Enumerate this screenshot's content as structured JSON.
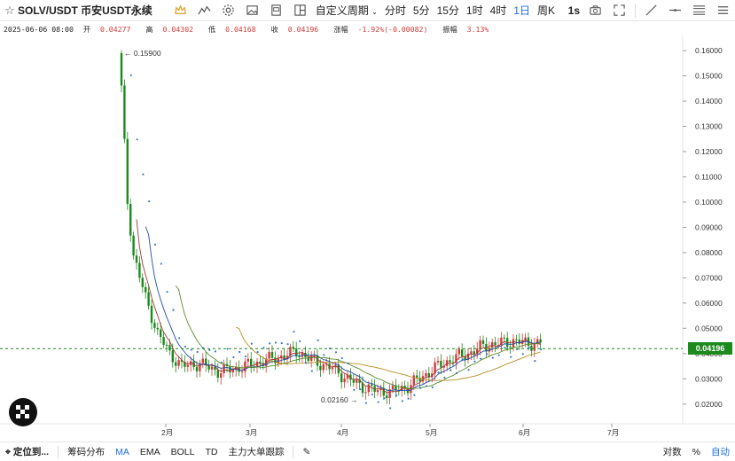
{
  "toolbar": {
    "symbol": "SOLV/USDT 币安USDT永续",
    "period_menu": "自定义周期",
    "intervals": [
      "分时",
      "5分",
      "15分",
      "1时",
      "4时",
      "1日",
      "周K"
    ],
    "active_interval": "1日",
    "refresh": "1s"
  },
  "info": {
    "date": "2025-06-06 08:00",
    "open_label": "开",
    "open": "0.04277",
    "high_label": "高",
    "high": "0.04302",
    "low_label": "低",
    "low": "0.04168",
    "close_label": "收",
    "close": "0.04196",
    "change_label": "涨幅",
    "change": "-1.92%(-0.00082)",
    "amp_label": "振幅",
    "amp": "3.13%"
  },
  "chart_data": {
    "type": "candlestick",
    "y_ticks": [
      "0.16000",
      "0.15000",
      "0.14000",
      "0.13000",
      "0.12000",
      "0.11000",
      "0.10000",
      "0.09000",
      "0.08000",
      "0.07000",
      "0.06000",
      "0.05000",
      "0.04000",
      "0.03000",
      "0.02000"
    ],
    "ylim": [
      0.015,
      0.1625
    ],
    "x_ticks": [
      "2月",
      "3月",
      "4月",
      "5月",
      "6月",
      "7月"
    ],
    "high_annotation": "0.15900",
    "low_annotation": "0.02160",
    "last_price": "0.04196",
    "colors": {
      "up": "#d23c3c",
      "down": "#1c8a1c",
      "ma_fast": "#1f4fa8",
      "ma_slow": "#b8902a",
      "ma_mid": "#5a8a2a",
      "ma_red": "#a53a3a",
      "sar": "#3a78c4"
    }
  },
  "bottombar": {
    "locate": "定位到...",
    "items": [
      "筹码分布",
      "MA",
      "EMA",
      "BOLL",
      "TD",
      "主力大单跟踪"
    ],
    "active_item": "MA",
    "right_items": [
      "对数",
      "%",
      "自动"
    ],
    "active_right": "自动"
  }
}
